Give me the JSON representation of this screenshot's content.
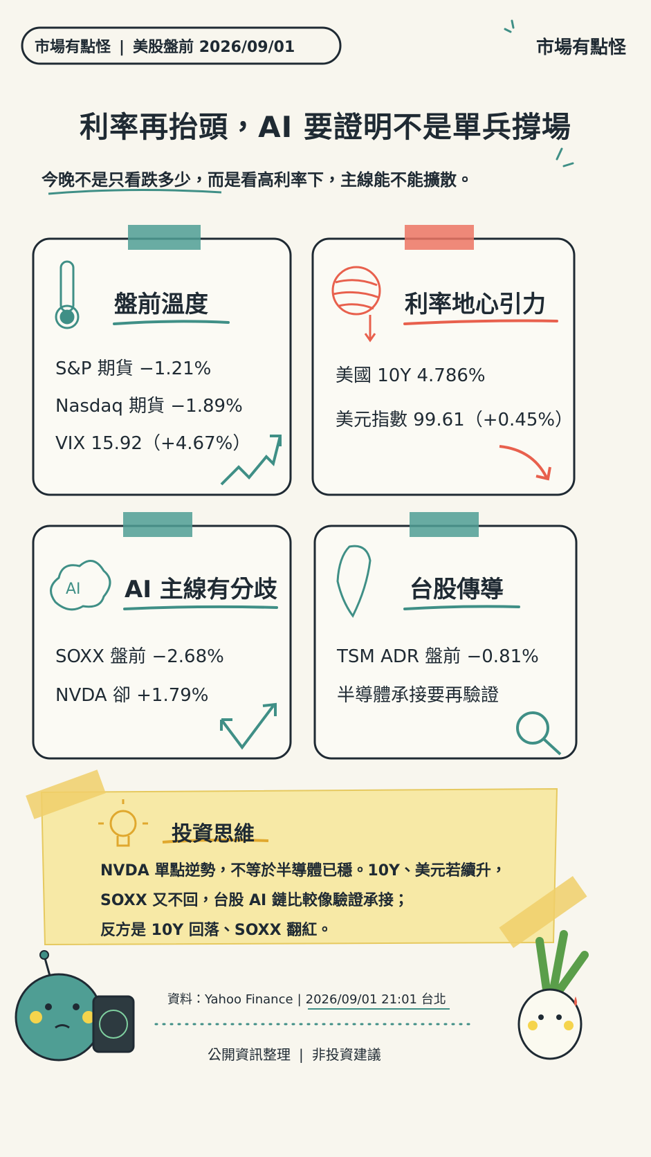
{
  "header": {
    "tag": [
      "市場有點怪",
      "美股盤前 2026/09/01"
    ],
    "brand": "市場有點怪",
    "title": "利率再抬頭，AI 要證明不是單兵撐場",
    "subtitle": "今晚不是只看跌多少，而是看高利率下，主線能不能擴散。"
  },
  "cards": [
    {
      "title": "盤前溫度",
      "lines": [
        "S&P 期貨 −1.21%",
        "Nasdaq 期貨 −1.89%",
        "VIX 15.92（+4.67%）"
      ]
    },
    {
      "title": "利率地心引力",
      "lines": [
        "美國 10Y 4.786%",
        "美元指數 99.61（+0.45%）"
      ]
    },
    {
      "title": "AI 主線有分歧",
      "lines": [
        "SOXX 盤前 −2.68%",
        "NVDA 卻 +1.79%"
      ]
    },
    {
      "title": "台股傳導",
      "lines": [
        "TSM ADR 盤前 −0.81%",
        "半導體承接要再驗證"
      ]
    }
  ],
  "insight": {
    "title": "投資思維",
    "lines": [
      "NVDA 單點逆勢，不等於半導體已穩。10Y、美元若續升，",
      "SOXX 又不回，台股 AI 鏈比較像驗證承接；",
      "反方是 10Y 回落、SOXX 翻紅。"
    ]
  },
  "footer": {
    "source": [
      "資料：Yahoo Finance",
      "2026/09/01 21:01 台北"
    ],
    "note": [
      "公開資訊整理",
      "非投資建議"
    ]
  }
}
